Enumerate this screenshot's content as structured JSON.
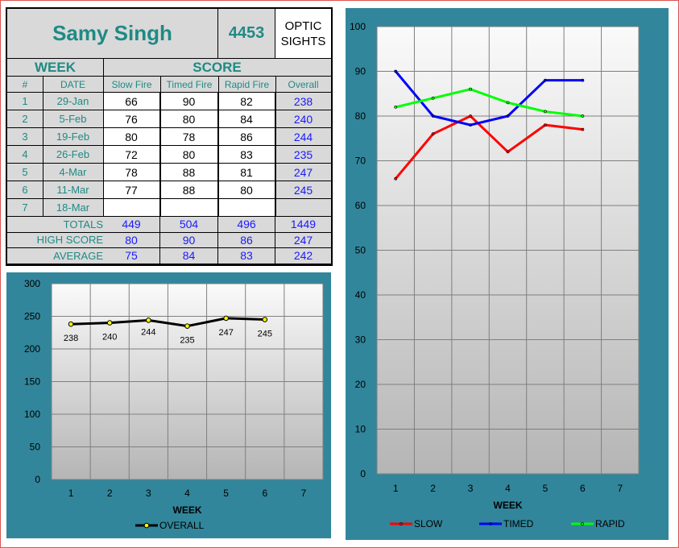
{
  "header": {
    "name": "Samy Singh",
    "id_number": "4453",
    "sight_type_line1": "OPTIC",
    "sight_type_line2": "SIGHTS"
  },
  "columns": {
    "week_group": "WEEK",
    "score_group": "SCORE",
    "num": "#",
    "date": "DATE",
    "slow": "Slow Fire",
    "timed": "Timed Fire",
    "rapid": "Rapid Fire",
    "overall": "Overall"
  },
  "rows": [
    {
      "num": "1",
      "date": "29-Jan",
      "slow": "66",
      "timed": "90",
      "rapid": "82",
      "overall": "238"
    },
    {
      "num": "2",
      "date": "5-Feb",
      "slow": "76",
      "timed": "80",
      "rapid": "84",
      "overall": "240"
    },
    {
      "num": "3",
      "date": "19-Feb",
      "slow": "80",
      "timed": "78",
      "rapid": "86",
      "overall": "244"
    },
    {
      "num": "4",
      "date": "26-Feb",
      "slow": "72",
      "timed": "80",
      "rapid": "83",
      "overall": "235"
    },
    {
      "num": "5",
      "date": "4-Mar",
      "slow": "78",
      "timed": "88",
      "rapid": "81",
      "overall": "247"
    },
    {
      "num": "6",
      "date": "11-Mar",
      "slow": "77",
      "timed": "88",
      "rapid": "80",
      "overall": "245"
    },
    {
      "num": "7",
      "date": "18-Mar",
      "slow": "",
      "timed": "",
      "rapid": "",
      "overall": ""
    }
  ],
  "summary": [
    {
      "label": "TOTALS",
      "slow": "449",
      "timed": "504",
      "rapid": "496",
      "overall": "1449"
    },
    {
      "label": "HIGH SCORE",
      "slow": "80",
      "timed": "90",
      "rapid": "86",
      "overall": "247"
    },
    {
      "label": "AVERAGE",
      "slow": "75",
      "timed": "84",
      "rapid": "83",
      "overall": "242"
    }
  ],
  "colors": {
    "teal_text": "#1f8a84",
    "blue_text": "#1a1aff",
    "panel": "#31869b",
    "slow": "#ff0000",
    "timed": "#0000ff",
    "rapid": "#00ff00"
  },
  "chart_data": [
    {
      "type": "line",
      "categories": [
        "1",
        "2",
        "3",
        "4",
        "5",
        "6",
        "7"
      ],
      "xlabel": "WEEK",
      "ylabel": "",
      "ylim": [
        0,
        300
      ],
      "yticks": [
        0,
        50,
        100,
        150,
        200,
        250,
        300
      ],
      "grid": true,
      "legend": "bottom",
      "series": [
        {
          "name": "OVERALL",
          "values": [
            238,
            240,
            244,
            235,
            247,
            245,
            null
          ],
          "color": "#000000",
          "marker_color": "#ffff00",
          "data_labels": true
        }
      ]
    },
    {
      "type": "line",
      "categories": [
        "1",
        "2",
        "3",
        "4",
        "5",
        "6",
        "7"
      ],
      "xlabel": "WEEK",
      "ylabel": "",
      "ylim": [
        0,
        100
      ],
      "yticks": [
        0,
        10,
        20,
        30,
        40,
        50,
        60,
        70,
        80,
        90,
        100
      ],
      "grid": true,
      "legend": "bottom",
      "series": [
        {
          "name": "SLOW",
          "values": [
            66,
            76,
            80,
            72,
            78,
            77,
            null
          ],
          "color": "#ff0000"
        },
        {
          "name": "TIMED",
          "values": [
            90,
            80,
            78,
            80,
            88,
            88,
            null
          ],
          "color": "#0000ff"
        },
        {
          "name": "RAPID",
          "values": [
            82,
            84,
            86,
            83,
            81,
            80,
            null
          ],
          "color": "#00ff00"
        }
      ]
    }
  ]
}
